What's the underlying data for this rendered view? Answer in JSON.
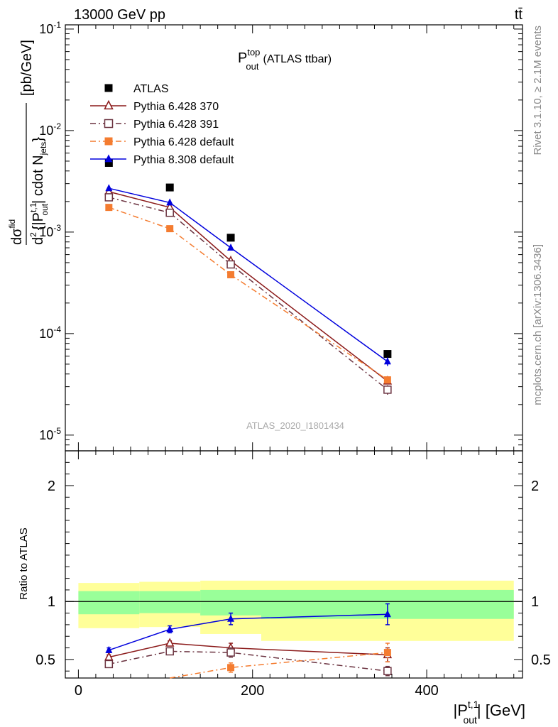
{
  "header": {
    "left": "13000 GeV pp",
    "right": "tt̄"
  },
  "plot_title": {
    "main": "P",
    "sup": "top",
    "sub": "out",
    "rest": "(ATLAS ttbar)"
  },
  "side_labels": {
    "rivet": "Rivet 3.1.10, ≥ 2.1M events",
    "mcplots": "mcplots.cern.ch [arXiv:1306.3436]"
  },
  "analysis_id": "ATLAS_2020_I1801434",
  "y_axis_label": {
    "prefix": "d",
    "sigma": "σ",
    "sigma_sup": "fid",
    "den_d2": "d",
    "den_sup2": "2",
    "den_bracket": "{|P",
    "den_sup_t": "t,1",
    "den_sub_out": "out",
    "den_cdot": "| cdot N",
    "den_sub_jets": "jets",
    "den_close": "}",
    "unit": "[pb/GeV]"
  },
  "ratio_y_label": "Ratio to ATLAS",
  "x_axis_label": {
    "main": "|P",
    "sup": "t,1",
    "sub": "out",
    "rest": "| [GeV]"
  },
  "colors": {
    "atlas": "#000000",
    "py6_370": "#8b1a1a",
    "py6_391": "#6b3340",
    "py6_default": "#f47c30",
    "py8_default": "#0000dd",
    "band_inner": "#99ff99",
    "band_outer": "#ffff99"
  },
  "chart_data": [
    {
      "type": "scatter",
      "panel": "main",
      "y_scale": "log",
      "ylim": [
        7e-06,
        0.11
      ],
      "xlim": [
        -15,
        510
      ],
      "y_tick_labels": [
        "10^-5",
        "10^-4",
        "10^-3",
        "10^-2",
        "10^-1"
      ],
      "legend_position": "top-left",
      "series": [
        {
          "name": "ATLAS",
          "style": "square-filled",
          "color_key": "atlas",
          "x": [
            35,
            105,
            175,
            355
          ],
          "y": [
            0.0048,
            0.00275,
            0.00088,
            6.3e-05
          ]
        },
        {
          "name": "Pythia 6.428 370",
          "style": "triangle-open-solid",
          "color_key": "py6_370",
          "x": [
            35,
            105,
            175,
            355
          ],
          "y": [
            0.0025,
            0.00175,
            0.00052,
            3.4e-05
          ]
        },
        {
          "name": "Pythia 6.428 391",
          "style": "square-open-dashdot",
          "color_key": "py6_391",
          "x": [
            35,
            105,
            175,
            355
          ],
          "y": [
            0.0022,
            0.00155,
            0.00048,
            2.8e-05
          ],
          "yerr": [
            0,
            0,
            0,
            3e-06
          ]
        },
        {
          "name": "Pythia 6.428 default",
          "style": "square-filled-dashdot",
          "color_key": "py6_default",
          "x": [
            35,
            105,
            175,
            355
          ],
          "y": [
            0.00175,
            0.00108,
            0.00038,
            3.5e-05
          ]
        },
        {
          "name": "Pythia 8.308 default",
          "style": "triangle-filled-solid",
          "color_key": "py8_default",
          "x": [
            35,
            105,
            175,
            355
          ],
          "y": [
            0.0027,
            0.00195,
            0.0007,
            5.3e-05
          ],
          "yerr": [
            0,
            0,
            0,
            5e-06
          ]
        }
      ]
    },
    {
      "type": "scatter",
      "panel": "ratio",
      "ylabel": "Ratio to ATLAS",
      "xlabel": "|P_out^t,1| [GeV]",
      "ylim": [
        0.34,
        2.3
      ],
      "xlim": [
        -15,
        510
      ],
      "x_ticks": [
        0,
        200,
        400
      ],
      "y_ticks": [
        0.5,
        1,
        2
      ],
      "bands": [
        {
          "x0": 0,
          "x1": 70,
          "inner": [
            0.89,
            1.09
          ],
          "outer": [
            0.77,
            1.16
          ]
        },
        {
          "x0": 70,
          "x1": 140,
          "inner": [
            0.9,
            1.09
          ],
          "outer": [
            0.78,
            1.17
          ]
        },
        {
          "x0": 140,
          "x1": 210,
          "inner": [
            0.88,
            1.1
          ],
          "outer": [
            0.72,
            1.18
          ]
        },
        {
          "x0": 210,
          "x1": 500,
          "inner": [
            0.85,
            1.1
          ],
          "outer": [
            0.66,
            1.18
          ]
        }
      ],
      "series": [
        {
          "name": "Pythia 6.428 370",
          "color_key": "py6_370",
          "style": "triangle-open-solid",
          "x": [
            35,
            105,
            175,
            355
          ],
          "y": [
            0.52,
            0.64,
            0.6,
            0.54
          ],
          "yerr": [
            0.02,
            0.02,
            0.04,
            0.06
          ]
        },
        {
          "name": "Pythia 6.428 391",
          "color_key": "py6_391",
          "style": "square-open-dashdot",
          "x": [
            35,
            105,
            175,
            355
          ],
          "y": [
            0.46,
            0.57,
            0.56,
            0.4
          ],
          "yerr": [
            0.01,
            0.02,
            0.04,
            0.04
          ]
        },
        {
          "name": "Pythia 6.428 default",
          "color_key": "py6_default",
          "style": "square-filled-dashdot",
          "x": [
            105,
            175,
            355
          ],
          "y": [
            0.34,
            0.43,
            0.56
          ],
          "yerr": [
            0,
            0.04,
            0.08
          ]
        },
        {
          "name": "Pythia 8.308 default",
          "color_key": "py8_default",
          "style": "triangle-filled-solid",
          "x": [
            35,
            105,
            175,
            355
          ],
          "y": [
            0.58,
            0.76,
            0.85,
            0.89
          ],
          "yerr": [
            0.02,
            0.03,
            0.05,
            0.09
          ]
        }
      ]
    }
  ]
}
